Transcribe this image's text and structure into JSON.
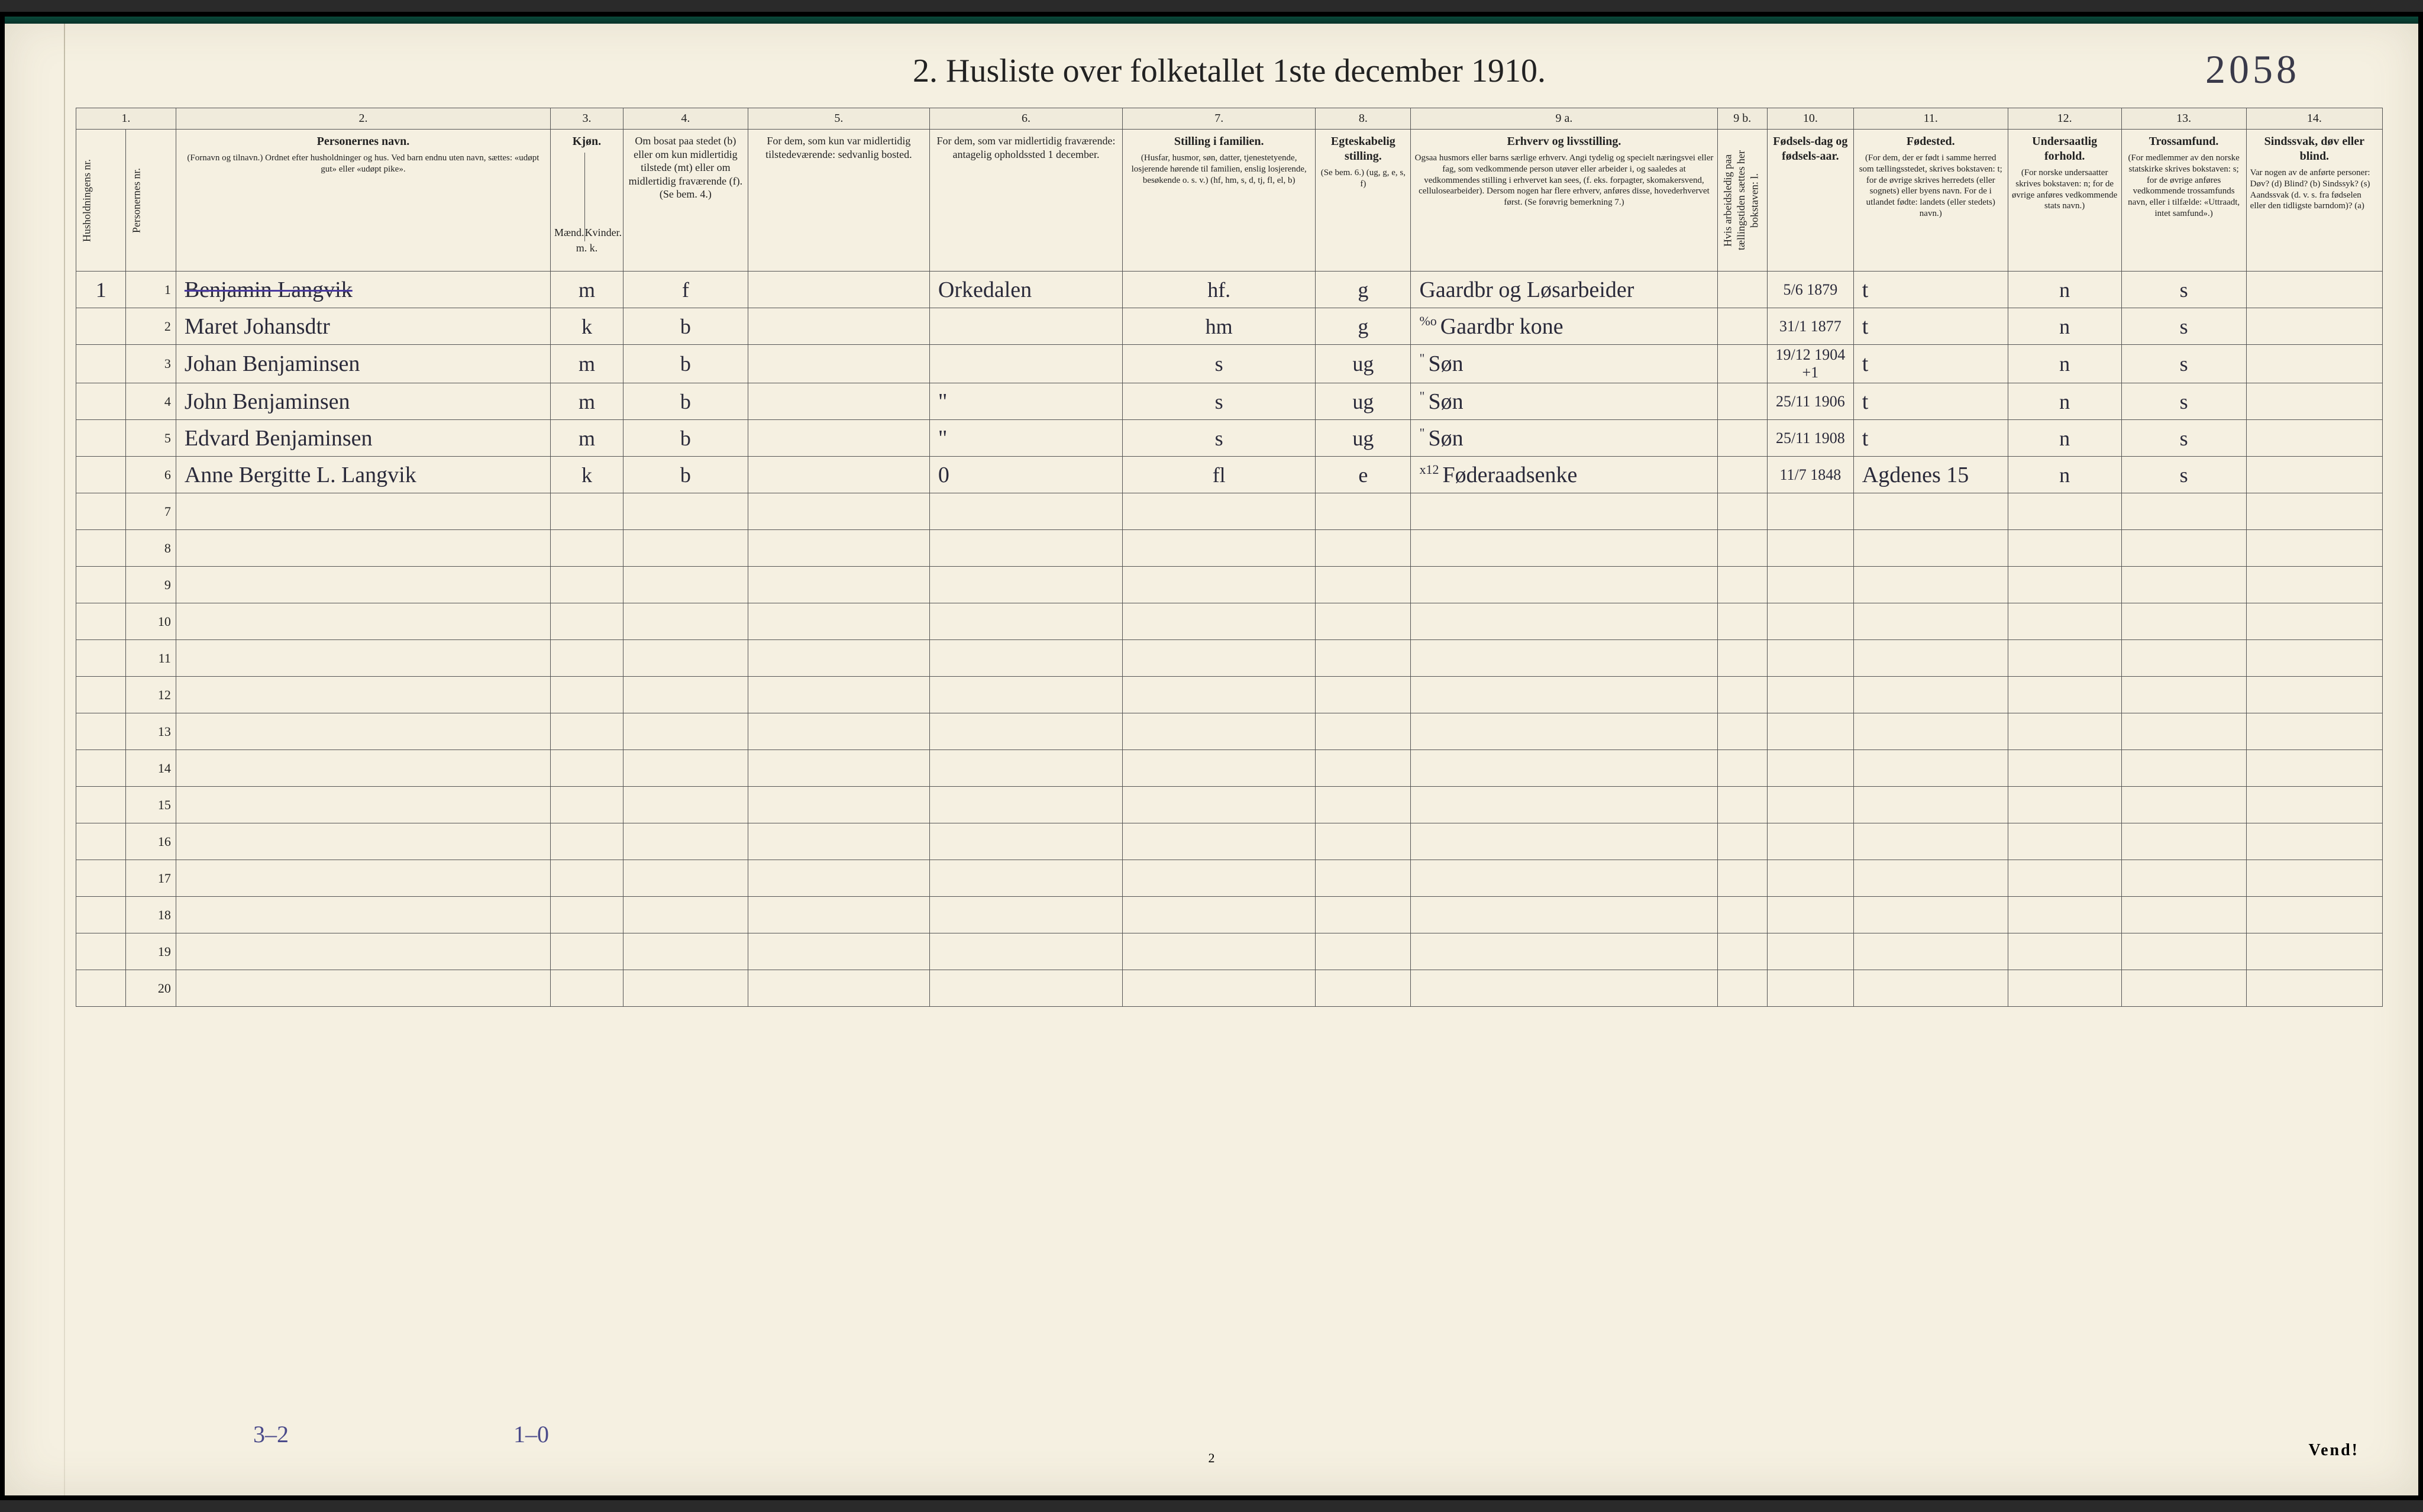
{
  "background": "#f5f0e1",
  "ink_color": "#2a2a3a",
  "rule_color": "#555555",
  "annotation_color": "#4a4a8a",
  "top_annotation": "2058",
  "title": "2.  Husliste over folketallet 1ste december 1910.",
  "col_numbers": [
    "1.",
    "2.",
    "3.",
    "4.",
    "5.",
    "6.",
    "7.",
    "8.",
    "9 a.",
    "9 b.",
    "10.",
    "11.",
    "12.",
    "13.",
    "14."
  ],
  "headers": {
    "c1a": "Husholdningens nr.",
    "c1b": "Personernes nr.",
    "c2_title": "Personernes navn.",
    "c2_sub": "(Fornavn og tilnavn.)\nOrdnet efter husholdninger og hus.\nVed barn endnu uten navn, sættes: «udøpt gut» eller «udøpt pike».",
    "c3_title": "Kjøn.",
    "c3_m": "Mænd.",
    "c3_k": "Kvinder.",
    "c3_mk": "m.  k.",
    "c4": "Om bosat paa stedet (b) eller om kun midlertidig tilstede (mt) eller om midlertidig fraværende (f).\n(Se bem. 4.)",
    "c5": "For dem, som kun var midlertidig tilstedeværende:\nsedvanlig bosted.",
    "c6": "For dem, som var midlertidig fraværende:\nantagelig opholdssted 1 december.",
    "c7_title": "Stilling i familien.",
    "c7_sub": "(Husfar, husmor, søn, datter, tjenestetyende, losjerende hørende til familien, enslig losjerende, besøkende o. s. v.)\n(hf, hm, s, d, tj, fl, el, b)",
    "c8_title": "Egteskabelig stilling.",
    "c8_sub": "(Se bem. 6.)\n(ug, g, e, s, f)",
    "c9a_title": "Erhverv og livsstilling.",
    "c9a_sub": "Ogsaa husmors eller barns særlige erhverv. Angi tydelig og specielt næringsvei eller fag, som vedkommende person utøver eller arbeider i, og saaledes at vedkommendes stilling i erhvervet kan sees, (f. eks. forpagter, skomakersvend, cellulosearbeider). Dersom nogen har flere erhverv, anføres disse, hovederhvervet først.\n(Se forøvrig bemerkning 7.)",
    "c9b": "Hvis arbeidsledig paa tællingstiden sættes her bokstaven: l.",
    "c10_title": "Fødsels-dag og fødsels-aar.",
    "c11_title": "Fødested.",
    "c11_sub": "(For dem, der er født i samme herred som tællingsstedet, skrives bokstaven: t; for de øvrige skrives herredets (eller sognets) eller byens navn. For de i utlandet fødte: landets (eller stedets) navn.)",
    "c12_title": "Undersaatlig forhold.",
    "c12_sub": "(For norske undersaatter skrives bokstaven: n; for de øvrige anføres vedkommende stats navn.)",
    "c13_title": "Trossamfund.",
    "c13_sub": "(For medlemmer av den norske statskirke skrives bokstaven: s; for de øvrige anføres vedkommende trossamfunds navn, eller i tilfælde: «Uttraadt, intet samfund».)",
    "c14_title": "Sindssvak, døv eller blind.",
    "c14_sub": "Var nogen av de anførte personer:\nDøv?       (d)\nBlind?     (b)\nSindssyk?  (s)\nAandssvak (d. v. s. fra fødselen eller den tidligste barndom)? (a)"
  },
  "rows": [
    {
      "hh": "1",
      "pn": "1",
      "name": "Benjamin Langvik",
      "strike": true,
      "sex": "m",
      "res": "f",
      "c5": "",
      "c6": "Orkedalen",
      "fam": "hf.",
      "civ": "g",
      "occ": "Gaardbr og Løsarbeider",
      "dob": "5/6 1879",
      "birthpl": "t",
      "nat": "n",
      "rel": "s",
      "dis": ""
    },
    {
      "hh": "",
      "pn": "2",
      "name": "Maret Johansdtr",
      "sex": "k",
      "res": "b",
      "c5": "",
      "c6": "",
      "fam": "hm",
      "civ": "g",
      "occ": "Gaardbr kone",
      "occ_pre": "%o",
      "dob": "31/1 1877",
      "birthpl": "t",
      "nat": "n",
      "rel": "s",
      "dis": ""
    },
    {
      "hh": "",
      "pn": "3",
      "name": "Johan Benjaminsen",
      "sex": "m",
      "res": "b",
      "c5": "",
      "c6": "",
      "fam": "s",
      "civ": "ug",
      "occ": "Søn",
      "occ_pre": "\"",
      "dob": "19/12 1904 +1",
      "birthpl": "t",
      "nat": "n",
      "rel": "s",
      "dis": ""
    },
    {
      "hh": "",
      "pn": "4",
      "name": "John Benjaminsen",
      "sex": "m",
      "res": "b",
      "c5": "",
      "c6": "\"",
      "fam": "s",
      "civ": "ug",
      "occ": "Søn",
      "occ_pre": "\"",
      "dob": "25/11 1906",
      "birthpl": "t",
      "nat": "n",
      "rel": "s",
      "dis": ""
    },
    {
      "hh": "",
      "pn": "5",
      "name": "Edvard Benjaminsen",
      "sex": "m",
      "res": "b",
      "c5": "",
      "c6": "\"",
      "fam": "s",
      "civ": "ug",
      "occ": "Søn",
      "occ_pre": "\"",
      "dob": "25/11 1908",
      "birthpl": "t",
      "nat": "n",
      "rel": "s",
      "dis": ""
    },
    {
      "hh": "",
      "pn": "6",
      "name": "Anne Bergitte L. Langvik",
      "sex": "k",
      "res": "b",
      "c5": "",
      "c6": "0",
      "fam": "fl",
      "civ": "e",
      "occ": "Føderaadsenke",
      "occ_pre": "x12",
      "dob": "11/7 1848",
      "birthpl": "Agdenes 15",
      "nat": "n",
      "rel": "s",
      "dis": ""
    }
  ],
  "blank_rows": [
    7,
    8,
    9,
    10,
    11,
    12,
    13,
    14,
    15,
    16,
    17,
    18,
    19,
    20
  ],
  "footer": {
    "left": "3–2",
    "mid": "1–0",
    "pagenum": "2",
    "vend": "Vend!"
  }
}
